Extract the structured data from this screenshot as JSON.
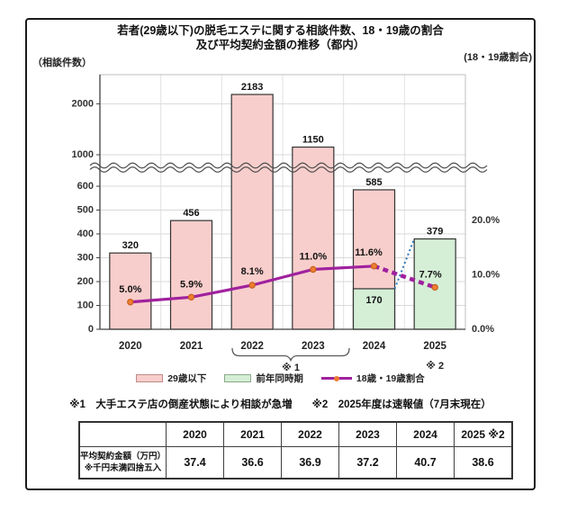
{
  "figure": {
    "title_line1": "若者(29歳以下)の脱毛エステに関する相談件数、18・19歳の割合",
    "title_line2": "及び平均契約金額の推移（都内）",
    "left_axis_caption": "（相談件数）",
    "right_axis_caption": "(18・19歳割合)"
  },
  "chart_data": {
    "type": "bar",
    "subtype": "combo bar+line with broken left axis",
    "categories": [
      "2020",
      "2021",
      "2022",
      "2023",
      "2024",
      "2025"
    ],
    "series": [
      {
        "name": "29歳以下",
        "type": "bar",
        "color": "#f8cecc",
        "border": "#333333",
        "values": [
          320,
          456,
          2183,
          1150,
          585,
          null
        ]
      },
      {
        "name": "前年同時期",
        "type": "bar",
        "color": "#d5eed6",
        "border": "#333333",
        "values": [
          null,
          null,
          null,
          null,
          170,
          379
        ]
      },
      {
        "name": "18歳・19歳割合",
        "type": "line",
        "axis": "right",
        "color": "#a0219e",
        "marker_color": "#ed7d31",
        "values": [
          5.0,
          5.9,
          8.1,
          11.0,
          11.6,
          7.7
        ],
        "labels": [
          "5.0%",
          "5.9%",
          "8.1%",
          "11.0%",
          "11.6%",
          "7.7%"
        ],
        "dashed_from_index": 4
      }
    ],
    "bar_labels": [
      "320",
      "456",
      "2183",
      "1150",
      "585",
      "379"
    ],
    "inner_bar_label": {
      "category": "2024",
      "text": "170"
    },
    "left_axis": {
      "ticks": [
        0,
        100,
        200,
        300,
        400,
        500,
        600,
        1000,
        2000
      ],
      "break_between": [
        600,
        1000
      ]
    },
    "right_axis": {
      "ticks": [
        "0.0%",
        "10.0%",
        "20.0%"
      ],
      "values": [
        0,
        10,
        20
      ],
      "max": 20
    },
    "grid": true,
    "legend_position": "bottom",
    "category_markers": {
      "bracket_2022_2023": "※ 1",
      "under_2025": "※ 2"
    },
    "connector": {
      "from_category": "2024",
      "from_value": 170,
      "to_category": "2025",
      "to_value": 379,
      "style": "dotted",
      "color": "#2e75b6"
    }
  },
  "legend": {
    "items": [
      {
        "label": "29歳以下",
        "swatch": "pink-bar"
      },
      {
        "label": "前年同時期",
        "swatch": "green-bar"
      },
      {
        "label": "18歳・19歳割合",
        "swatch": "magenta-line"
      }
    ]
  },
  "notes": {
    "note1": "※1　大手エステ店の倒産状態により相談が急増",
    "note2": "※2　2025年度は速報値（7月末現在）"
  },
  "table": {
    "row_label_line1": "平均契約金額（万円）",
    "row_label_line2": "※千円未満四捨五入",
    "columns": [
      "2020",
      "2021",
      "2022",
      "2023",
      "2024",
      "2025 ※2"
    ],
    "values": [
      "37.4",
      "36.6",
      "36.9",
      "37.2",
      "40.7",
      "38.6"
    ]
  }
}
